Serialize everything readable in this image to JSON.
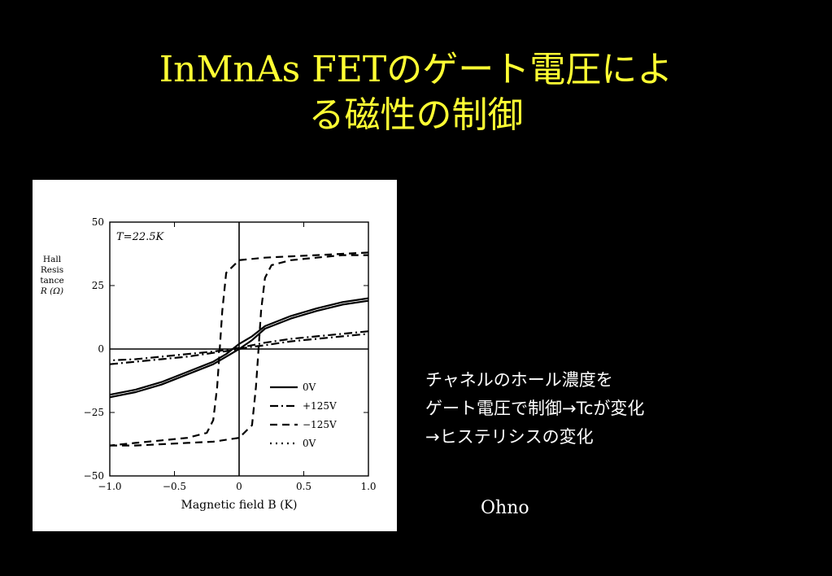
{
  "slide": {
    "title_lines": [
      "InMnAs FETのゲート電圧によ",
      "る磁性の制御"
    ],
    "caption_lines": [
      "チャネルのホール濃度を",
      "ゲート電圧で制御→Tcが変化",
      "→ヒステリシスの変化"
    ],
    "credit": "Ohno",
    "colors": {
      "background": "#000000",
      "title": "#ffff33",
      "caption": "#ffffff"
    }
  },
  "chart_data": {
    "type": "line",
    "annotation": "T=22.5K",
    "ylabel_lines": [
      "Hall",
      "Resis",
      "tance",
      "R (Ω)"
    ],
    "xlabel": "Magnetic field B (K)",
    "xlim": [
      -1.0,
      1.0
    ],
    "ylim": [
      -50,
      50
    ],
    "x_ticks": [
      "−1.0",
      "−0.5",
      "0",
      "0.5",
      "1.0"
    ],
    "y_ticks": [
      "50",
      "25",
      "0",
      "−25",
      "−50"
    ],
    "grid": false,
    "legend_position": "bottom-right",
    "series": [
      {
        "name": "0V",
        "style": "solid",
        "branches": [
          {
            "x": [
              -1.0,
              -0.8,
              -0.6,
              -0.4,
              -0.2,
              -0.1,
              0.0,
              0.1,
              0.2,
              0.4,
              0.6,
              0.8,
              1.0
            ],
            "y": [
              -19,
              -17,
              -14,
              -10,
              -6,
              -3,
              0,
              3.5,
              8,
              12,
              15,
              17.5,
              19
            ]
          },
          {
            "x": [
              1.0,
              0.8,
              0.6,
              0.4,
              0.2,
              0.1,
              0.0,
              -0.1,
              -0.2,
              -0.4,
              -0.6,
              -0.8,
              -1.0
            ],
            "y": [
              20,
              18.5,
              16,
              13,
              9,
              5,
              2,
              -2,
              -5,
              -9,
              -13,
              -16,
              -18
            ]
          }
        ]
      },
      {
        "name": "+125V",
        "style": "dashdot",
        "branches": [
          {
            "x": [
              -1.0,
              -0.8,
              -0.6,
              -0.4,
              -0.2,
              -0.05,
              0.05,
              0.2,
              0.4,
              0.6,
              0.8,
              1.0
            ],
            "y": [
              -6,
              -5,
              -4,
              -3,
              -1.5,
              -0.5,
              0.5,
              1.5,
              3,
              4,
              5,
              6
            ]
          },
          {
            "x": [
              1.0,
              0.8,
              0.6,
              0.4,
              0.2,
              0.05,
              -0.05,
              -0.2,
              -0.4,
              -0.6,
              -0.8,
              -1.0
            ],
            "y": [
              7,
              6,
              5,
              4,
              2.5,
              1,
              0,
              -1,
              -2,
              -3,
              -4,
              -4.5
            ]
          }
        ]
      },
      {
        "name": "−125V",
        "style": "dashed",
        "branches": [
          {
            "x": [
              -1.0,
              -0.8,
              -0.6,
              -0.4,
              -0.2,
              0.0,
              0.1,
              0.13,
              0.15,
              0.17,
              0.2,
              0.25,
              0.4,
              0.6,
              0.8,
              1.0
            ],
            "y": [
              -38,
              -38,
              -37.5,
              -37,
              -36.5,
              -35,
              -30,
              -15,
              0,
              15,
              28,
              33,
              35,
              36,
              37,
              37
            ]
          },
          {
            "x": [
              1.0,
              0.8,
              0.6,
              0.4,
              0.2,
              0.0,
              -0.1,
              -0.13,
              -0.15,
              -0.17,
              -0.2,
              -0.25,
              -0.4,
              -0.6,
              -0.8,
              -1.0
            ],
            "y": [
              38,
              37.5,
              37,
              36.5,
              36,
              35,
              30,
              15,
              0,
              -15,
              -28,
              -33,
              -35,
              -36,
              -37,
              -38
            ]
          }
        ]
      },
      {
        "name": "0V",
        "style": "dotted",
        "branches": []
      }
    ]
  }
}
